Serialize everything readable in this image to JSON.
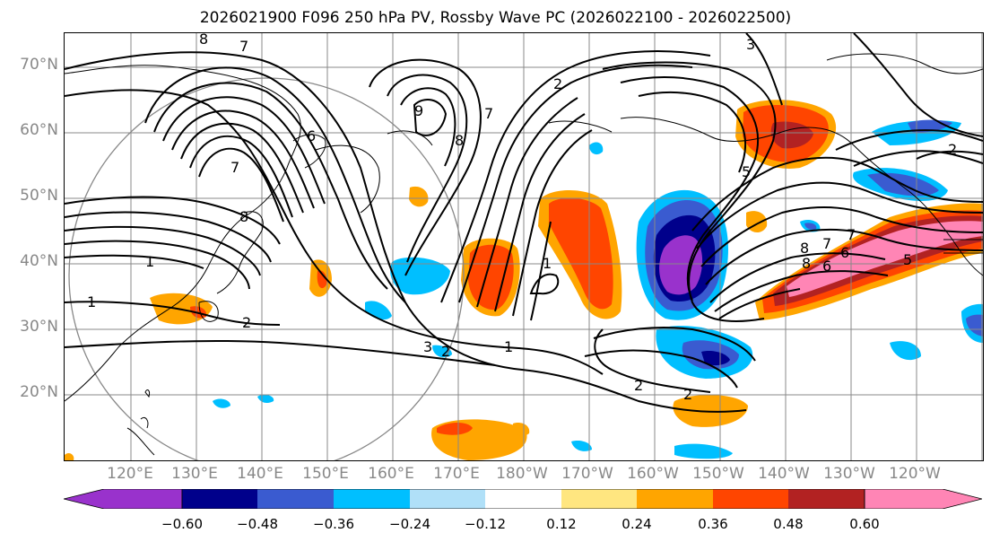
{
  "title": "2026021900 F096 250 hPa PV, Rossby Wave PC (2026022100 - 2026022500)",
  "lat_labels": [
    "70°N",
    "60°N",
    "50°N",
    "40°N",
    "30°N",
    "20°N"
  ],
  "lon_labels": [
    "120°E",
    "130°E",
    "140°E",
    "150°E",
    "160°E",
    "170°E",
    "180°W",
    "170°W",
    "160°W",
    "150°W",
    "140°W",
    "130°W",
    "120°W"
  ],
  "contour_labels": [
    "8",
    "7",
    "7",
    "6",
    "8",
    "9",
    "8",
    "3",
    "2",
    "7",
    "5",
    "1",
    "1",
    "2",
    "3",
    "2",
    "1",
    "1",
    "2",
    "2",
    "8",
    "7",
    "6",
    "2",
    "5",
    "6",
    "7",
    "8"
  ],
  "colorbar": {
    "ticks": [
      "−0.60",
      "−0.48",
      "−0.36",
      "−0.24",
      "−0.12",
      "0.12",
      "0.24",
      "0.36",
      "0.48",
      "0.60"
    ],
    "colors": [
      "#9932CC",
      "#00008B",
      "#3A5BD0",
      "#00BFFF",
      "#B0E0F8",
      "#FFFFFF",
      "#FFE680",
      "#FFA500",
      "#FF4500",
      "#B22222",
      "#FF85B5"
    ]
  }
}
